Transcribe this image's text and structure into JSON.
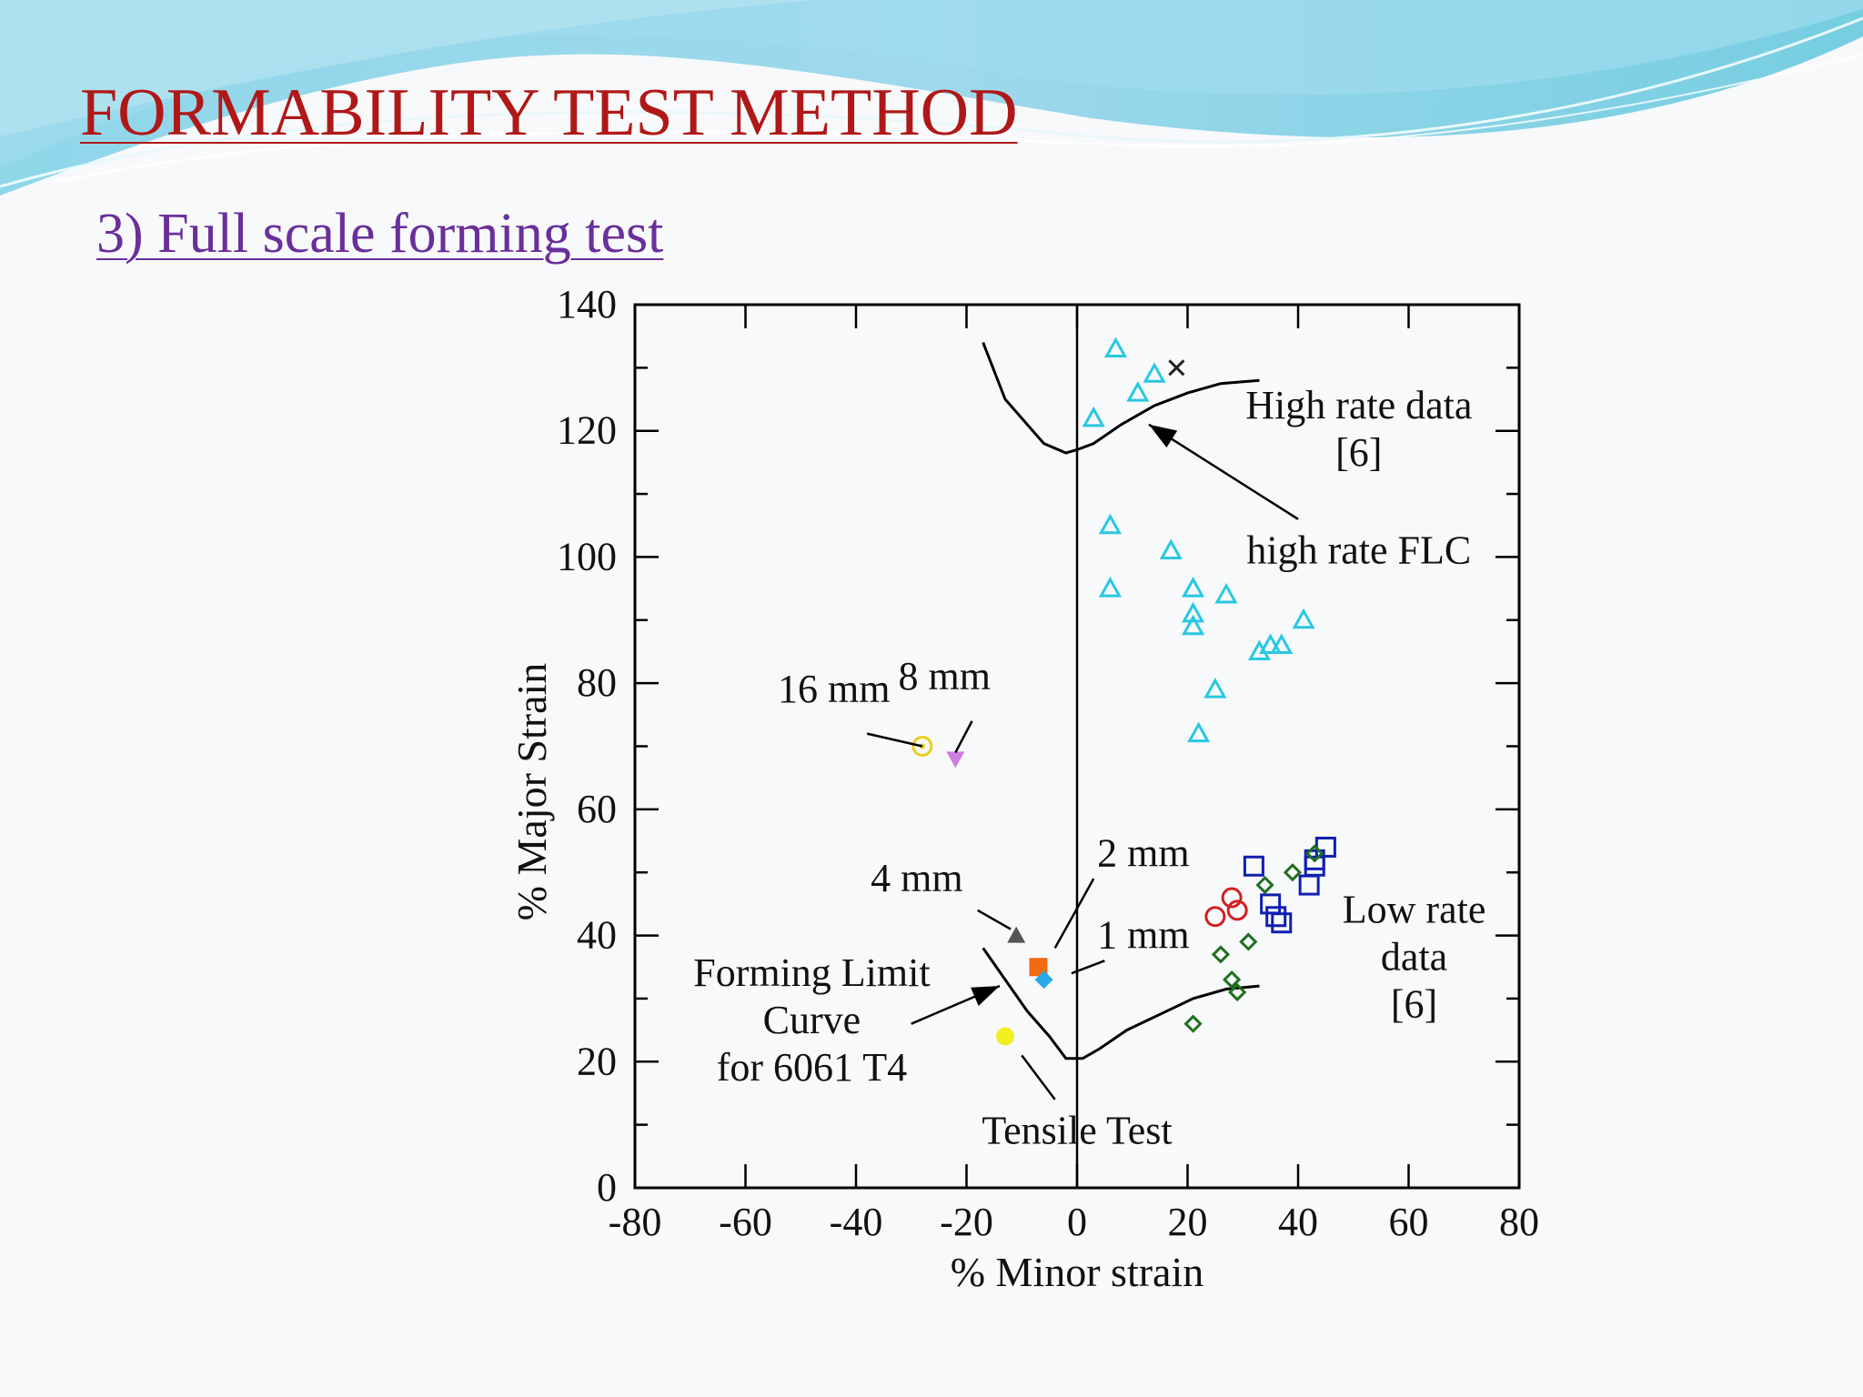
{
  "slide": {
    "title": "FORMABILITY TEST  METHOD",
    "subtitle": "3) Full scale forming test",
    "colors": {
      "title": "#b01818",
      "subtitle": "#6a2f9a",
      "wave": "#5fc6dc"
    }
  },
  "chart_data": {
    "type": "scatter",
    "xlabel": "% Minor strain",
    "ylabel": "% Major Strain",
    "xlim": [
      -80,
      80
    ],
    "ylim": [
      0,
      140
    ],
    "xticks": [
      "-80",
      "-60",
      "-40",
      "-20",
      "0",
      "20",
      "40",
      "60",
      "80"
    ],
    "yticks": [
      "0",
      "20",
      "40",
      "60",
      "80",
      "100",
      "120",
      "140"
    ],
    "grid": false,
    "curves": [
      {
        "name": "high rate FLC",
        "color": "#000000",
        "points": [
          [
            -17,
            134
          ],
          [
            -13,
            125
          ],
          [
            -6,
            118
          ],
          [
            -2,
            116.5
          ],
          [
            0,
            117
          ],
          [
            3,
            118
          ],
          [
            8,
            121
          ],
          [
            14,
            124
          ],
          [
            20,
            126
          ],
          [
            26,
            127.5
          ],
          [
            33,
            128
          ]
        ]
      },
      {
        "name": "Forming Limit Curve for 6061 T4",
        "color": "#000000",
        "points": [
          [
            -17,
            38
          ],
          [
            -13,
            33
          ],
          [
            -9,
            28
          ],
          [
            -5,
            24
          ],
          [
            -2,
            20.5
          ],
          [
            1,
            20.5
          ],
          [
            4,
            22
          ],
          [
            9,
            25
          ],
          [
            15,
            27.5
          ],
          [
            21,
            30
          ],
          [
            27,
            31.5
          ],
          [
            33,
            32
          ]
        ]
      }
    ],
    "series": [
      {
        "name": "high rate data",
        "marker": "triangle-open",
        "color": "#28c8e0",
        "points": [
          [
            7,
            133
          ],
          [
            11,
            126
          ],
          [
            14,
            129
          ],
          [
            3,
            122
          ],
          [
            6,
            105
          ],
          [
            17,
            101
          ],
          [
            6,
            95
          ],
          [
            21,
            95
          ],
          [
            27,
            94
          ],
          [
            21,
            91
          ],
          [
            21,
            89
          ],
          [
            41,
            90
          ],
          [
            33,
            85
          ],
          [
            35,
            86
          ],
          [
            37,
            86
          ],
          [
            25,
            79
          ],
          [
            22,
            72
          ]
        ]
      },
      {
        "name": "high rate data x",
        "marker": "x",
        "color": "#222222",
        "points": [
          [
            18,
            130
          ]
        ]
      },
      {
        "name": "low rate data squares",
        "marker": "square-open",
        "color": "#1020b0",
        "points": [
          [
            32,
            51
          ],
          [
            45,
            54
          ],
          [
            43,
            52
          ],
          [
            43,
            51
          ],
          [
            35,
            45
          ],
          [
            42,
            48
          ],
          [
            36,
            43
          ],
          [
            37,
            42
          ]
        ]
      },
      {
        "name": "low rate data circles",
        "marker": "circle-open",
        "color": "#d02020",
        "points": [
          [
            28,
            46
          ],
          [
            25,
            43
          ],
          [
            29,
            44
          ]
        ]
      },
      {
        "name": "low rate data diamonds",
        "marker": "diamond-open",
        "color": "#207020",
        "points": [
          [
            39,
            50
          ],
          [
            34,
            48
          ],
          [
            43,
            53
          ],
          [
            31,
            39
          ],
          [
            26,
            37
          ],
          [
            28,
            33
          ],
          [
            29,
            31
          ],
          [
            21,
            26
          ]
        ]
      },
      {
        "name": "16 mm",
        "marker": "circle-dot",
        "color": "#e8d020",
        "points": [
          [
            -28,
            70
          ]
        ]
      },
      {
        "name": "8 mm",
        "marker": "triangle-down-filled",
        "color": "#cc80dd",
        "points": [
          [
            -22,
            68
          ]
        ]
      },
      {
        "name": "4 mm",
        "marker": "triangle-filled",
        "color": "#555555",
        "points": [
          [
            -11,
            40
          ]
        ]
      },
      {
        "name": "2 mm",
        "marker": "square-filled",
        "color": "#f06a10",
        "points": [
          [
            -7,
            35
          ]
        ]
      },
      {
        "name": "1 mm",
        "marker": "diamond-filled",
        "color": "#2aa8e8",
        "points": [
          [
            -6,
            33
          ]
        ]
      },
      {
        "name": "Tensile Test",
        "marker": "circle-filled",
        "color": "#f0f020",
        "points": [
          [
            -13,
            24
          ]
        ]
      }
    ],
    "annotations": [
      {
        "lines": [
          "High rate data",
          "[6]"
        ],
        "at": [
          51,
          122
        ]
      },
      {
        "lines": [
          "high rate FLC"
        ],
        "at": [
          51,
          99
        ]
      },
      {
        "lines": [
          "16 mm"
        ],
        "at": [
          -44,
          77
        ]
      },
      {
        "lines": [
          "8 mm"
        ],
        "at": [
          -24,
          79
        ]
      },
      {
        "lines": [
          "4 mm"
        ],
        "at": [
          -29,
          47
        ]
      },
      {
        "lines": [
          "2 mm"
        ],
        "at": [
          12,
          51
        ]
      },
      {
        "lines": [
          "1 mm"
        ],
        "at": [
          12,
          38
        ]
      },
      {
        "lines": [
          "Forming Limit",
          "Curve",
          "for 6061 T4"
        ],
        "at": [
          -48,
          32
        ]
      },
      {
        "lines": [
          "Tensile Test"
        ],
        "at": [
          0,
          7
        ]
      },
      {
        "lines": [
          "Low rate",
          "data",
          "[6]"
        ],
        "at": [
          61,
          42
        ]
      }
    ]
  }
}
